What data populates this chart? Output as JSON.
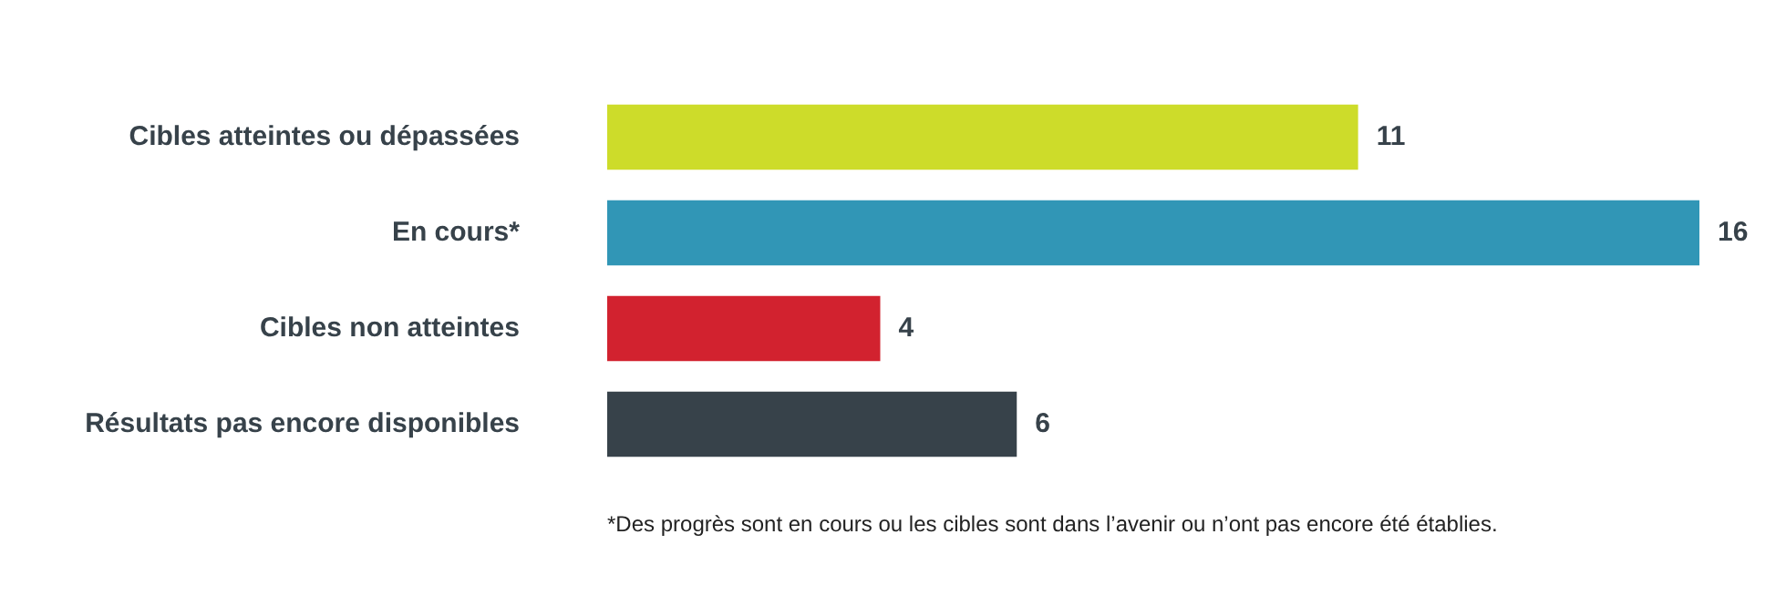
{
  "chart_data": {
    "type": "bar",
    "orientation": "horizontal",
    "categories": [
      "Cibles atteintes ou dépassées",
      "En cours*",
      "Cibles non atteintes",
      "Résultats pas encore disponibles"
    ],
    "values": [
      11,
      16,
      4,
      6
    ],
    "colors": [
      "#cddc2a",
      "#3196b6",
      "#d2222f",
      "#37424a"
    ],
    "data_labels": true,
    "legend": false,
    "annotations": [
      "*Des progrès sont en cours ou les cibles sont dans l’avenir ou n’ont pas encore été établies."
    ]
  }
}
